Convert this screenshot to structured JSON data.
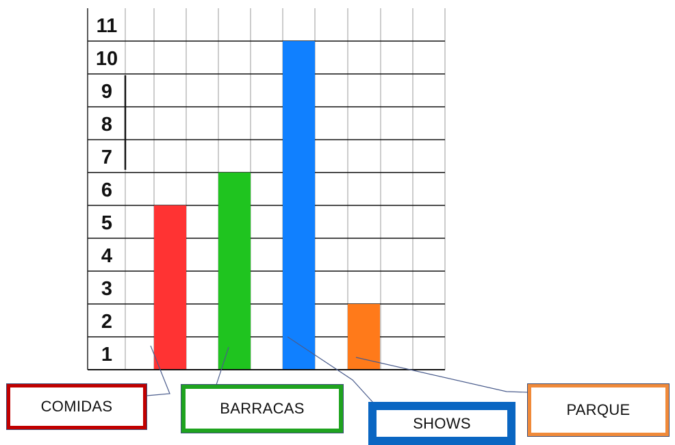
{
  "chart_data": {
    "type": "bar",
    "categories": [
      "COMIDAS",
      "BARRACAS",
      "SHOWS",
      "PARQUE"
    ],
    "values": [
      5,
      6,
      10,
      2
    ],
    "colors": [
      "#ff3333",
      "#1fc41f",
      "#1080ff",
      "#ff7a1a"
    ],
    "border_colors": [
      "#c00000",
      "#1fa31f",
      "#0a66c2",
      "#f08a3a"
    ],
    "y_tick_labels": [
      "1",
      "2",
      "3",
      "4",
      "5",
      "6",
      "7",
      "8",
      "9",
      "10",
      "11"
    ],
    "ylim": [
      0,
      11
    ],
    "grid": true,
    "title": "",
    "xlabel": "",
    "ylabel": ""
  }
}
